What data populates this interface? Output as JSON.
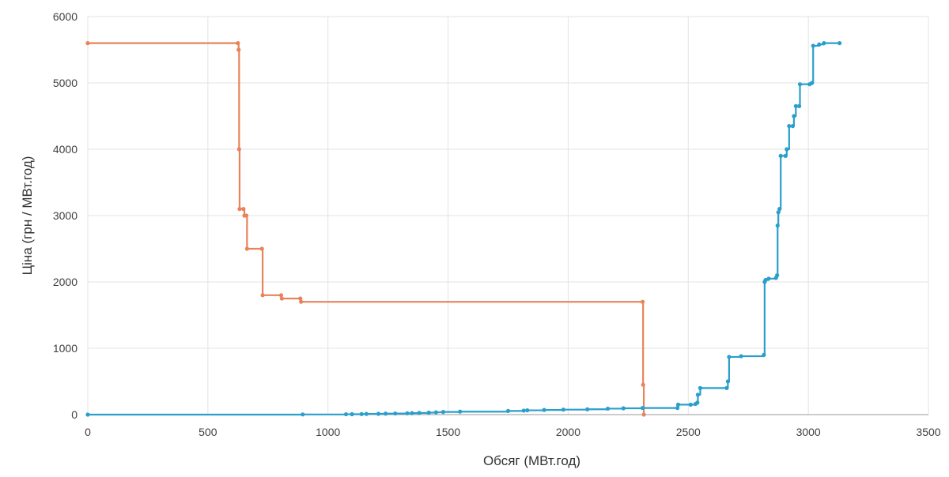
{
  "chart_data": {
    "type": "line",
    "xlabel": "Обсяг (МВт.год)",
    "ylabel": "Ціна (грн / МВт.год)",
    "xlim": [
      0,
      3500
    ],
    "ylim": [
      0,
      6000
    ],
    "xticks": [
      0,
      500,
      1000,
      1500,
      2000,
      2500,
      3000,
      3500
    ],
    "yticks": [
      0,
      1000,
      2000,
      3000,
      4000,
      5000,
      6000
    ],
    "grid": true,
    "legend": "none",
    "step": true,
    "series": [
      {
        "color": "#e8835a",
        "points": [
          [
            0,
            5600
          ],
          [
            625,
            5600
          ],
          [
            628,
            5500
          ],
          [
            630,
            4000
          ],
          [
            632,
            3100
          ],
          [
            648,
            3100
          ],
          [
            652,
            3000
          ],
          [
            660,
            3000
          ],
          [
            663,
            2500
          ],
          [
            725,
            2500
          ],
          [
            728,
            1800
          ],
          [
            805,
            1800
          ],
          [
            808,
            1750
          ],
          [
            885,
            1750
          ],
          [
            888,
            1700
          ],
          [
            2310,
            1700
          ],
          [
            2312,
            450
          ],
          [
            2315,
            0
          ]
        ]
      },
      {
        "color": "#2a9fcc",
        "points": [
          [
            0,
            0
          ],
          [
            895,
            2
          ],
          [
            1075,
            5
          ],
          [
            1100,
            6
          ],
          [
            1140,
            8
          ],
          [
            1160,
            10
          ],
          [
            1210,
            12
          ],
          [
            1240,
            15
          ],
          [
            1280,
            17
          ],
          [
            1330,
            20
          ],
          [
            1350,
            22
          ],
          [
            1380,
            25
          ],
          [
            1420,
            30
          ],
          [
            1450,
            35
          ],
          [
            1480,
            40
          ],
          [
            1550,
            45
          ],
          [
            1750,
            55
          ],
          [
            1815,
            60
          ],
          [
            1830,
            65
          ],
          [
            1900,
            70
          ],
          [
            1980,
            75
          ],
          [
            2080,
            80
          ],
          [
            2165,
            90
          ],
          [
            2230,
            95
          ],
          [
            2310,
            100
          ],
          [
            2455,
            100
          ],
          [
            2458,
            150
          ],
          [
            2510,
            150
          ],
          [
            2530,
            160
          ],
          [
            2538,
            180
          ],
          [
            2540,
            300
          ],
          [
            2550,
            400
          ],
          [
            2660,
            400
          ],
          [
            2665,
            500
          ],
          [
            2670,
            870
          ],
          [
            2720,
            880
          ],
          [
            2815,
            900
          ],
          [
            2818,
            2000
          ],
          [
            2822,
            2030
          ],
          [
            2835,
            2050
          ],
          [
            2865,
            2060
          ],
          [
            2870,
            2100
          ],
          [
            2872,
            2850
          ],
          [
            2875,
            3050
          ],
          [
            2880,
            3100
          ],
          [
            2885,
            3900
          ],
          [
            2905,
            3900
          ],
          [
            2910,
            4000
          ],
          [
            2920,
            4350
          ],
          [
            2935,
            4350
          ],
          [
            2940,
            4500
          ],
          [
            2948,
            4650
          ],
          [
            2962,
            4650
          ],
          [
            2965,
            4980
          ],
          [
            3005,
            4980
          ],
          [
            3015,
            5000
          ],
          [
            3020,
            5560
          ],
          [
            3045,
            5580
          ],
          [
            3065,
            5600
          ],
          [
            3130,
            5600
          ]
        ]
      }
    ]
  }
}
